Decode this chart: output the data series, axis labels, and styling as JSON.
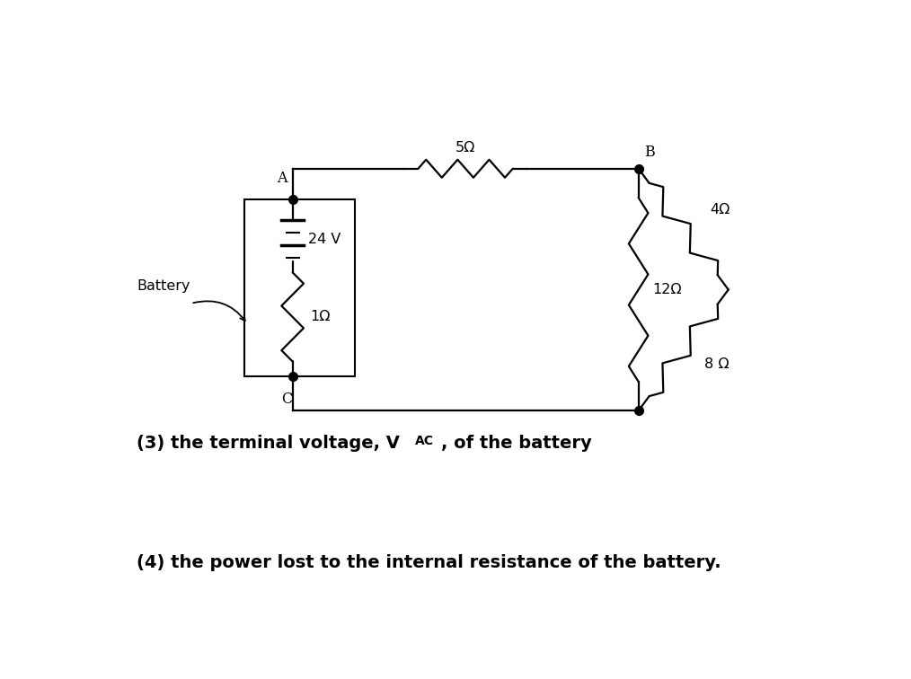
{
  "bg_color": "#ffffff",
  "line_color": "#000000",
  "line_width": 1.6,
  "dot_size": 7,
  "label_battery": "Battery",
  "label_24V": "24 V",
  "label_1ohm": "1Ω",
  "label_5ohm": "5Ω",
  "label_12ohm": "12Ω",
  "label_4ohm": "4Ω",
  "label_8ohm": "8 Ω",
  "label_A": "A",
  "label_B": "B",
  "label_C": "C",
  "figsize": [
    10.14,
    7.56
  ],
  "dpi": 100
}
